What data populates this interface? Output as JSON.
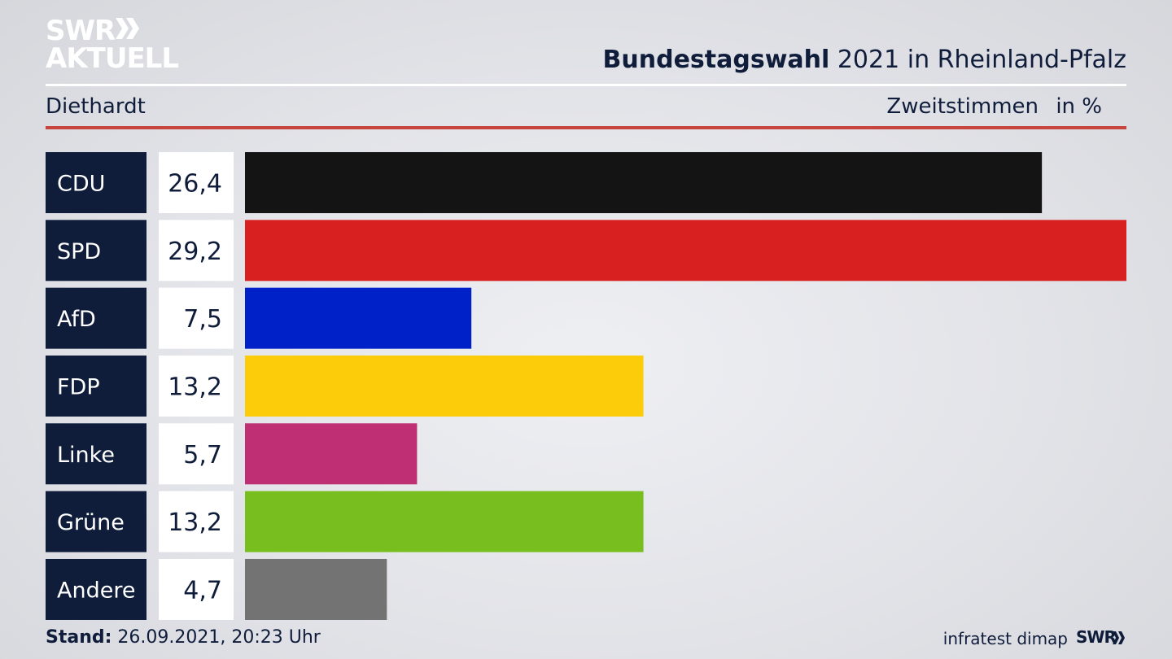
{
  "branding": {
    "logo_line1": "SWR",
    "logo_line2": "AKTUELL",
    "footer_logo": "SWR",
    "logo_color": "#ffffff"
  },
  "header": {
    "title_bold": "Bundestagswahl",
    "title_rest": " 2021 in Rheinland-Pfalz",
    "place": "Diethardt",
    "measure": "Zweitstimmen",
    "unit": "in %"
  },
  "footer": {
    "stand_label": "Stand:",
    "stand_value": " 26.09.2021, 20:23 Uhr",
    "source": "infratest dimap"
  },
  "colors": {
    "label_bg": "#0f1d3b",
    "value_bg": "#ffffff",
    "accent_rule": "#c8453e"
  },
  "chart_data": {
    "type": "bar",
    "orientation": "horizontal",
    "categories": [
      "CDU",
      "SPD",
      "AfD",
      "FDP",
      "Linke",
      "Grüne",
      "Andere"
    ],
    "values": [
      26.4,
      29.2,
      7.5,
      13.2,
      5.7,
      13.2,
      4.7
    ],
    "value_labels": [
      "26,4",
      "29,2",
      "7,5",
      "13,2",
      "5,7",
      "13,2",
      "4,7"
    ],
    "colors": [
      "#141414",
      "#d82020",
      "#0020c8",
      "#fccc0a",
      "#be2f73",
      "#78be1e",
      "#737373"
    ],
    "xlim": [
      0,
      29.2
    ],
    "grid": false,
    "legend": "none"
  }
}
